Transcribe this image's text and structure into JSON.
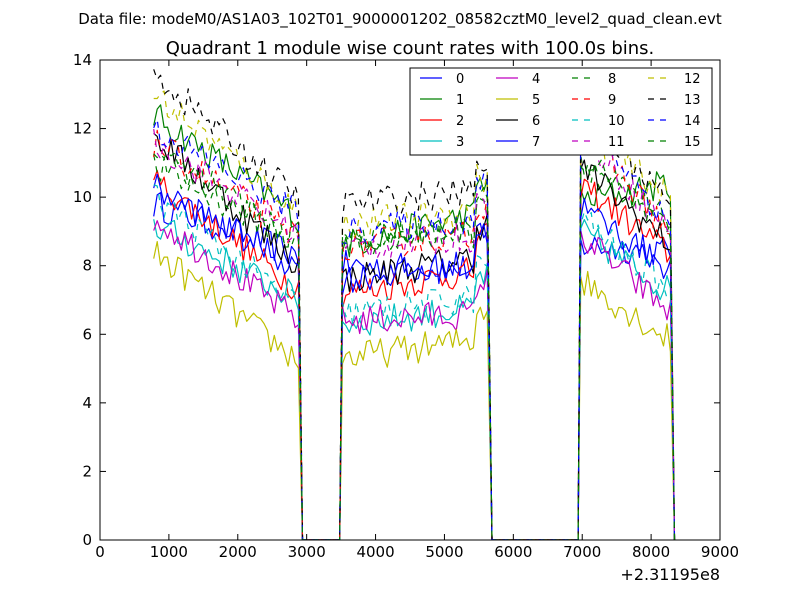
{
  "figure": {
    "suptitle": "Data file: modeM0/AS1A03_102T01_9000001202_08582cztM0_level2_quad_clean.evt",
    "title": "Quadrant 1 module wise count rates with 100.0s bins.",
    "x_offset_label": "+2.31195e8"
  },
  "chart_data": {
    "type": "line",
    "title": "Quadrant 1 module wise count rates with 100.0s bins.",
    "xlabel": "",
    "ylabel": "",
    "xlim": [
      0,
      9000
    ],
    "ylim": [
      0,
      14
    ],
    "x_offset": 231195000,
    "x_ticks": [
      0,
      1000,
      2000,
      3000,
      4000,
      5000,
      6000,
      7000,
      8000,
      9000
    ],
    "y_ticks": [
      0,
      2,
      4,
      6,
      8,
      10,
      12,
      14
    ],
    "grid": false,
    "legend_placement": "top-right",
    "legend_columns": 4,
    "segments": [
      [
        780,
        2900
      ],
      [
        3520,
        5650
      ],
      [
        6980,
        8300
      ]
    ],
    "series": [
      {
        "name": "0",
        "color": "#0000ff",
        "dash": "solid",
        "level": [
          9.8,
          8.3,
          8.0,
          7.9,
          8.6,
          8.4
        ]
      },
      {
        "name": "1",
        "color": "#008000",
        "dash": "solid",
        "level": [
          12.4,
          9.4,
          8.6,
          9.6,
          9.9,
          10.4
        ]
      },
      {
        "name": "2",
        "color": "#ff0000",
        "dash": "solid",
        "level": [
          10.5,
          7.3,
          7.2,
          7.9,
          10.4,
          8.3
        ]
      },
      {
        "name": "3",
        "color": "#00bfbf",
        "dash": "solid",
        "level": [
          9.2,
          7.0,
          6.3,
          6.8,
          9.0,
          7.2
        ]
      },
      {
        "name": "4",
        "color": "#bf00bf",
        "dash": "solid",
        "level": [
          9.4,
          6.4,
          6.4,
          6.6,
          8.9,
          6.6
        ]
      },
      {
        "name": "5",
        "color": "#bfbf00",
        "dash": "solid",
        "level": [
          8.4,
          5.2,
          5.3,
          5.9,
          7.6,
          5.8
        ]
      },
      {
        "name": "6",
        "color": "#000000",
        "dash": "solid",
        "level": [
          11.8,
          8.0,
          7.6,
          8.3,
          10.9,
          8.6
        ]
      },
      {
        "name": "7",
        "color": "#0000ff",
        "dash": "solid",
        "level": [
          10.3,
          7.9,
          7.6,
          8.1,
          9.7,
          7.9
        ]
      },
      {
        "name": "8",
        "color": "#008000",
        "dash": "dashed",
        "level": [
          10.9,
          8.7,
          8.8,
          9.1,
          11.1,
          9.2
        ]
      },
      {
        "name": "9",
        "color": "#ff0000",
        "dash": "dashed",
        "level": [
          11.6,
          8.8,
          8.6,
          8.9,
          12.0,
          8.9
        ]
      },
      {
        "name": "10",
        "color": "#00bfbf",
        "dash": "dashed",
        "level": [
          10.0,
          6.8,
          6.6,
          7.1,
          9.4,
          7.2
        ]
      },
      {
        "name": "11",
        "color": "#bf00bf",
        "dash": "dashed",
        "level": [
          11.6,
          8.9,
          8.5,
          8.9,
          11.8,
          9.0
        ]
      },
      {
        "name": "12",
        "color": "#bfbf00",
        "dash": "dashed",
        "level": [
          13.0,
          9.6,
          9.2,
          9.7,
          12.1,
          9.9
        ]
      },
      {
        "name": "13",
        "color": "#000000",
        "dash": "dashed",
        "level": [
          13.6,
          9.9,
          9.8,
          10.2,
          12.4,
          9.9
        ]
      },
      {
        "name": "14",
        "color": "#0000ff",
        "dash": "dashed",
        "level": [
          12.0,
          9.5,
          9.0,
          9.4,
          12.5,
          9.1
        ]
      },
      {
        "name": "15",
        "color": "#008000",
        "dash": "dashed",
        "level": [
          11.4,
          8.7,
          8.7,
          9.0,
          11.2,
          8.8
        ]
      }
    ]
  }
}
